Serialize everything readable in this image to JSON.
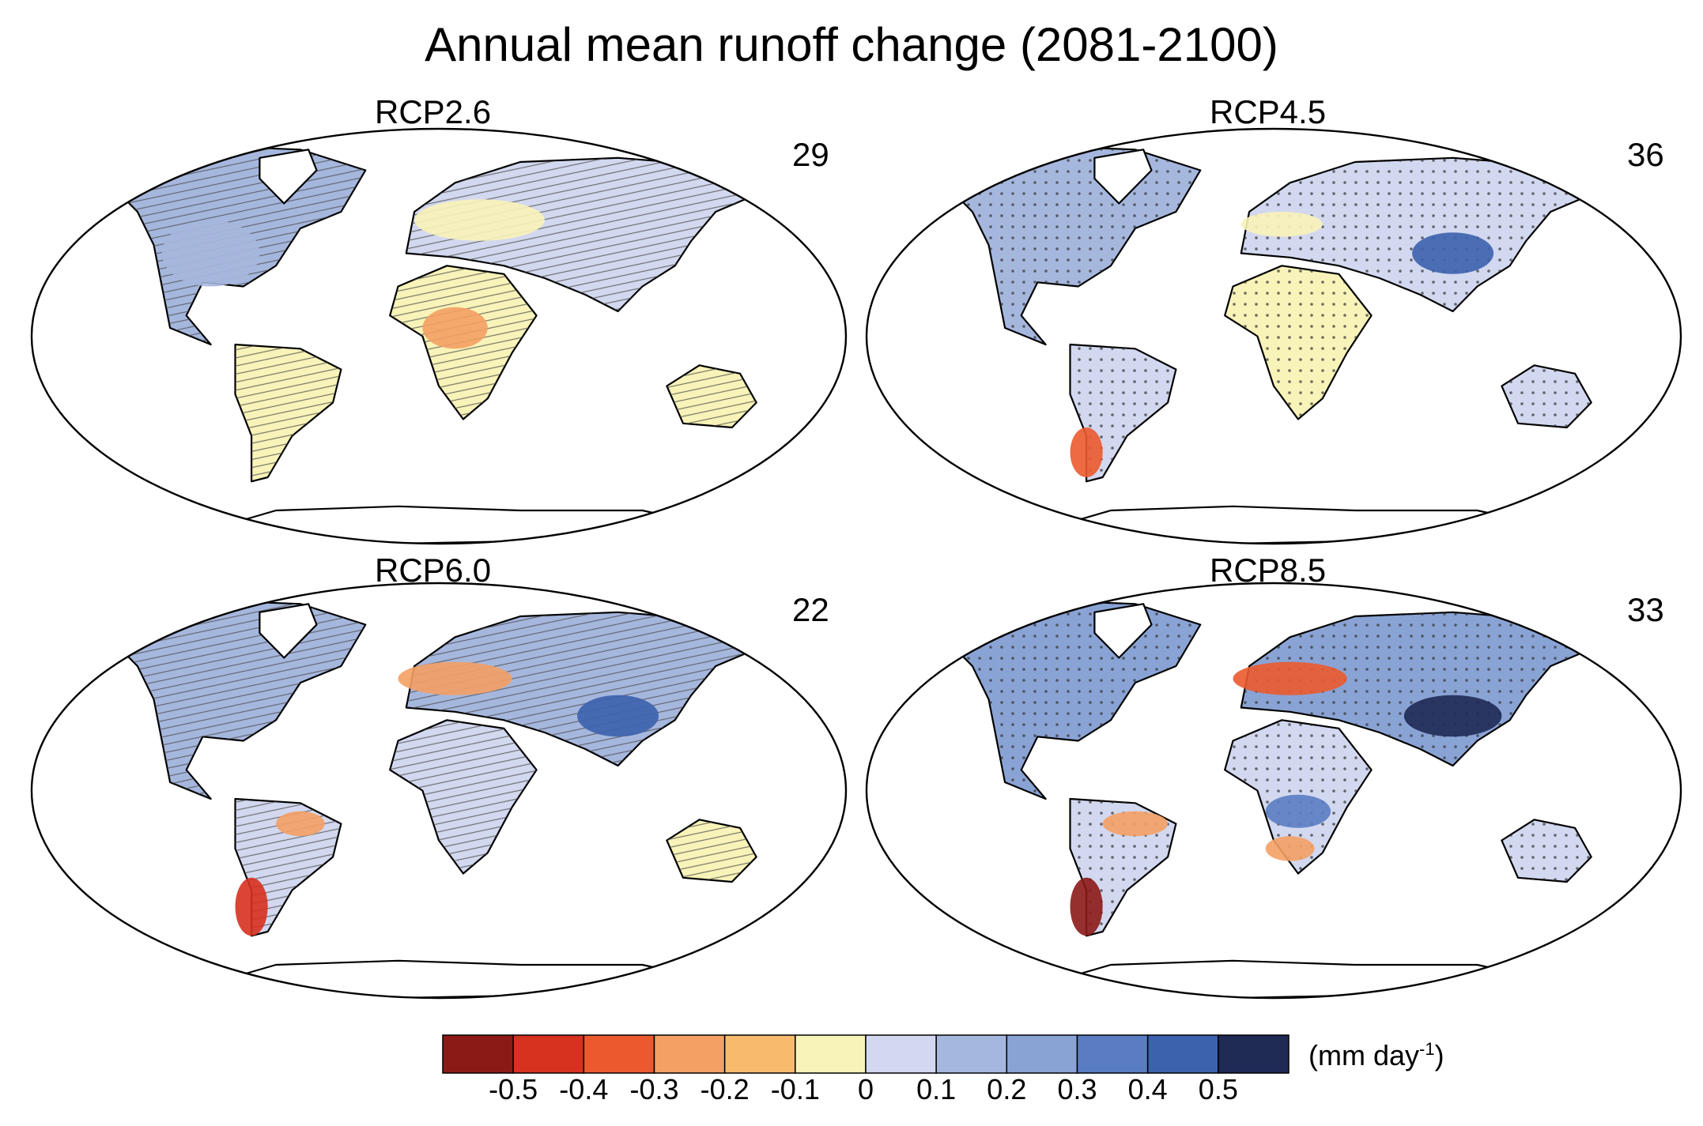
{
  "title": "Annual mean runoff change (2081-2100)",
  "panels": [
    {
      "label": "RCP2.6",
      "count": "29"
    },
    {
      "label": "RCP4.5",
      "count": "36"
    },
    {
      "label": "RCP6.0",
      "count": "22"
    },
    {
      "label": "RCP8.5",
      "count": "33"
    }
  ],
  "colorbar": {
    "colors": [
      "#8b1a17",
      "#d7311f",
      "#eb5a2e",
      "#f4a064",
      "#f8bb6e",
      "#f8f3b8",
      "#d2d8ef",
      "#a6b7de",
      "#8aa3d5",
      "#5a7dc2",
      "#3c62ad",
      "#1f2a55"
    ],
    "ticks": [
      "-0.5",
      "-0.4",
      "-0.3",
      "-0.2",
      "-0.1",
      "0",
      "0.1",
      "0.2",
      "0.3",
      "0.4",
      "0.5"
    ],
    "unit_base": "(mm day",
    "unit_exp": "-1",
    "unit_close": ")"
  }
}
